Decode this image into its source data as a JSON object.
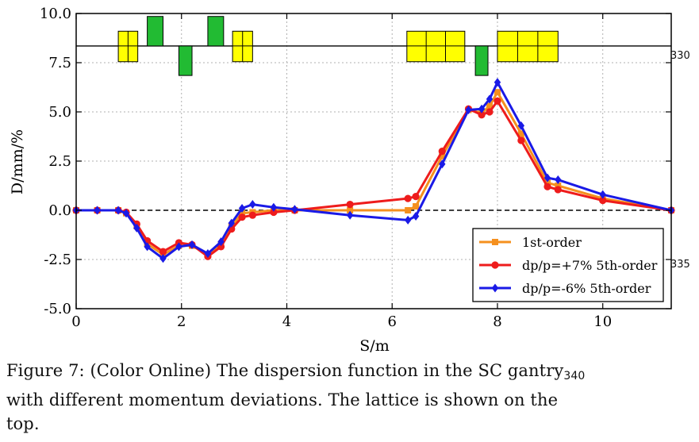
{
  "chart_data": {
    "type": "line",
    "xlabel": "S/m",
    "ylabel": "D/mm/%",
    "xlim": [
      0,
      11.3
    ],
    "ylim": [
      -5.0,
      10.0
    ],
    "xticks": [
      "0",
      "2",
      "4",
      "6",
      "8",
      "10"
    ],
    "yticks": [
      "-5.0",
      "-2.5",
      "0.0",
      "2.5",
      "5.0",
      "7.5",
      "10.0"
    ],
    "grid": true,
    "legend_position": "lower-right",
    "reference_line_y": 0,
    "series": [
      {
        "name": "1st-order",
        "color": "#f5901e",
        "marker": "square",
        "x": [
          0.0,
          0.4,
          0.8,
          0.95,
          1.15,
          1.35,
          1.65,
          1.95,
          2.2,
          2.5,
          2.75,
          2.95,
          3.15,
          3.35,
          3.75,
          4.15,
          5.2,
          6.3,
          6.45,
          6.95,
          7.45,
          7.7,
          7.85,
          8.0,
          8.45,
          8.95,
          9.15,
          10.0,
          11.3
        ],
        "y": [
          0.0,
          0.0,
          0.0,
          -0.15,
          -0.8,
          -1.7,
          -2.25,
          -1.8,
          -1.8,
          -2.25,
          -1.75,
          -0.8,
          -0.15,
          -0.1,
          0.0,
          0.0,
          0.0,
          0.0,
          0.2,
          2.75,
          5.1,
          4.95,
          5.3,
          6.0,
          3.9,
          1.4,
          1.25,
          0.6,
          0.0
        ]
      },
      {
        "name": "dp/p=+7% 5th-order",
        "color": "#ee1c1c",
        "marker": "circle",
        "x": [
          0.0,
          0.4,
          0.8,
          0.95,
          1.15,
          1.35,
          1.65,
          1.95,
          2.2,
          2.5,
          2.75,
          2.95,
          3.15,
          3.35,
          3.75,
          4.15,
          5.2,
          6.3,
          6.45,
          6.95,
          7.45,
          7.7,
          7.85,
          8.0,
          8.45,
          8.95,
          9.15,
          10.0,
          11.3
        ],
        "y": [
          0.0,
          0.0,
          0.0,
          -0.1,
          -0.7,
          -1.55,
          -2.1,
          -1.65,
          -1.75,
          -2.35,
          -1.85,
          -0.95,
          -0.35,
          -0.25,
          -0.1,
          0.0,
          0.3,
          0.6,
          0.7,
          3.0,
          5.15,
          4.85,
          5.0,
          5.55,
          3.55,
          1.2,
          1.05,
          0.5,
          0.0
        ]
      },
      {
        "name": "dp/p=-6%  5th-order",
        "color": "#1a1ae6",
        "marker": "diamond",
        "x": [
          0.0,
          0.4,
          0.8,
          0.95,
          1.15,
          1.35,
          1.65,
          1.95,
          2.2,
          2.5,
          2.75,
          2.95,
          3.15,
          3.35,
          3.75,
          4.15,
          5.2,
          6.3,
          6.45,
          6.95,
          7.45,
          7.7,
          7.85,
          8.0,
          8.45,
          8.95,
          9.15,
          10.0,
          11.3
        ],
        "y": [
          0.0,
          0.0,
          0.0,
          -0.15,
          -0.9,
          -1.85,
          -2.45,
          -1.85,
          -1.75,
          -2.2,
          -1.6,
          -0.65,
          0.1,
          0.3,
          0.15,
          0.05,
          -0.25,
          -0.5,
          -0.3,
          2.35,
          5.1,
          5.15,
          5.65,
          6.5,
          4.3,
          1.65,
          1.55,
          0.8,
          0.0
        ]
      }
    ],
    "lattice": {
      "baseline_y": 8.35,
      "elements": [
        {
          "x0": 0.8,
          "x1": 1.17,
          "y0": 7.55,
          "y1": 9.1,
          "color": "#ffff00",
          "segments": 2
        },
        {
          "x0": 1.35,
          "x1": 1.65,
          "y0": 8.35,
          "y1": 9.85,
          "color": "#22bb33",
          "segments": 1
        },
        {
          "x0": 1.95,
          "x1": 2.2,
          "y0": 6.85,
          "y1": 8.35,
          "color": "#22bb33",
          "segments": 1
        },
        {
          "x0": 2.5,
          "x1": 2.8,
          "y0": 8.35,
          "y1": 9.85,
          "color": "#22bb33",
          "segments": 1
        },
        {
          "x0": 2.97,
          "x1": 3.35,
          "y0": 7.55,
          "y1": 9.1,
          "color": "#ffff00",
          "segments": 2
        },
        {
          "x0": 6.28,
          "x1": 7.38,
          "y0": 7.55,
          "y1": 9.1,
          "color": "#ffff00",
          "segments": 3
        },
        {
          "x0": 7.58,
          "x1": 7.82,
          "y0": 6.85,
          "y1": 8.35,
          "color": "#22bb33",
          "segments": 1
        },
        {
          "x0": 8.0,
          "x1": 9.15,
          "y0": 7.55,
          "y1": 9.1,
          "color": "#ffff00",
          "segments": 3
        }
      ]
    }
  },
  "caption": {
    "line1": "Figure 7: (Color Online) The dispersion function in the SC gantry",
    "line2": "with different momentum deviations.  The lattice is shown on the",
    "line3": "top."
  },
  "line_numbers": {
    "n330": "330",
    "n335": "335",
    "n340": "340"
  }
}
